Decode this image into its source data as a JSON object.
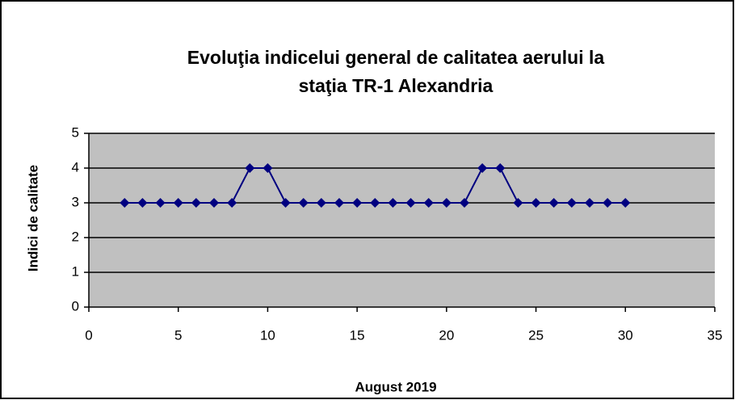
{
  "chart_data": {
    "type": "line",
    "title": [
      "Evoluţia indicelui general de calitatea aerului la",
      "staţia TR-1 Alexandria"
    ],
    "x_label": "August 2019",
    "y_label": "Indici de calitate",
    "x": [
      2,
      3,
      4,
      5,
      6,
      7,
      8,
      9,
      10,
      11,
      12,
      13,
      14,
      15,
      16,
      17,
      18,
      19,
      20,
      21,
      22,
      23,
      24,
      25,
      26,
      27,
      28,
      29,
      30
    ],
    "series": [
      {
        "name": "Indici de calitate",
        "color": "#000080",
        "values": [
          3,
          3,
          3,
          3,
          3,
          3,
          3,
          4,
          4,
          3,
          3,
          3,
          3,
          3,
          3,
          3,
          3,
          3,
          3,
          3,
          4,
          4,
          3,
          3,
          3,
          3,
          3,
          3,
          3
        ]
      }
    ],
    "xlim": [
      0,
      35
    ],
    "xticks": [
      0,
      5,
      10,
      15,
      20,
      25,
      30,
      35
    ],
    "ylim": [
      0,
      5
    ],
    "yticks": [
      0,
      1,
      2,
      3,
      4,
      5
    ],
    "grid": true,
    "plot_background": "#c0c0c0"
  }
}
